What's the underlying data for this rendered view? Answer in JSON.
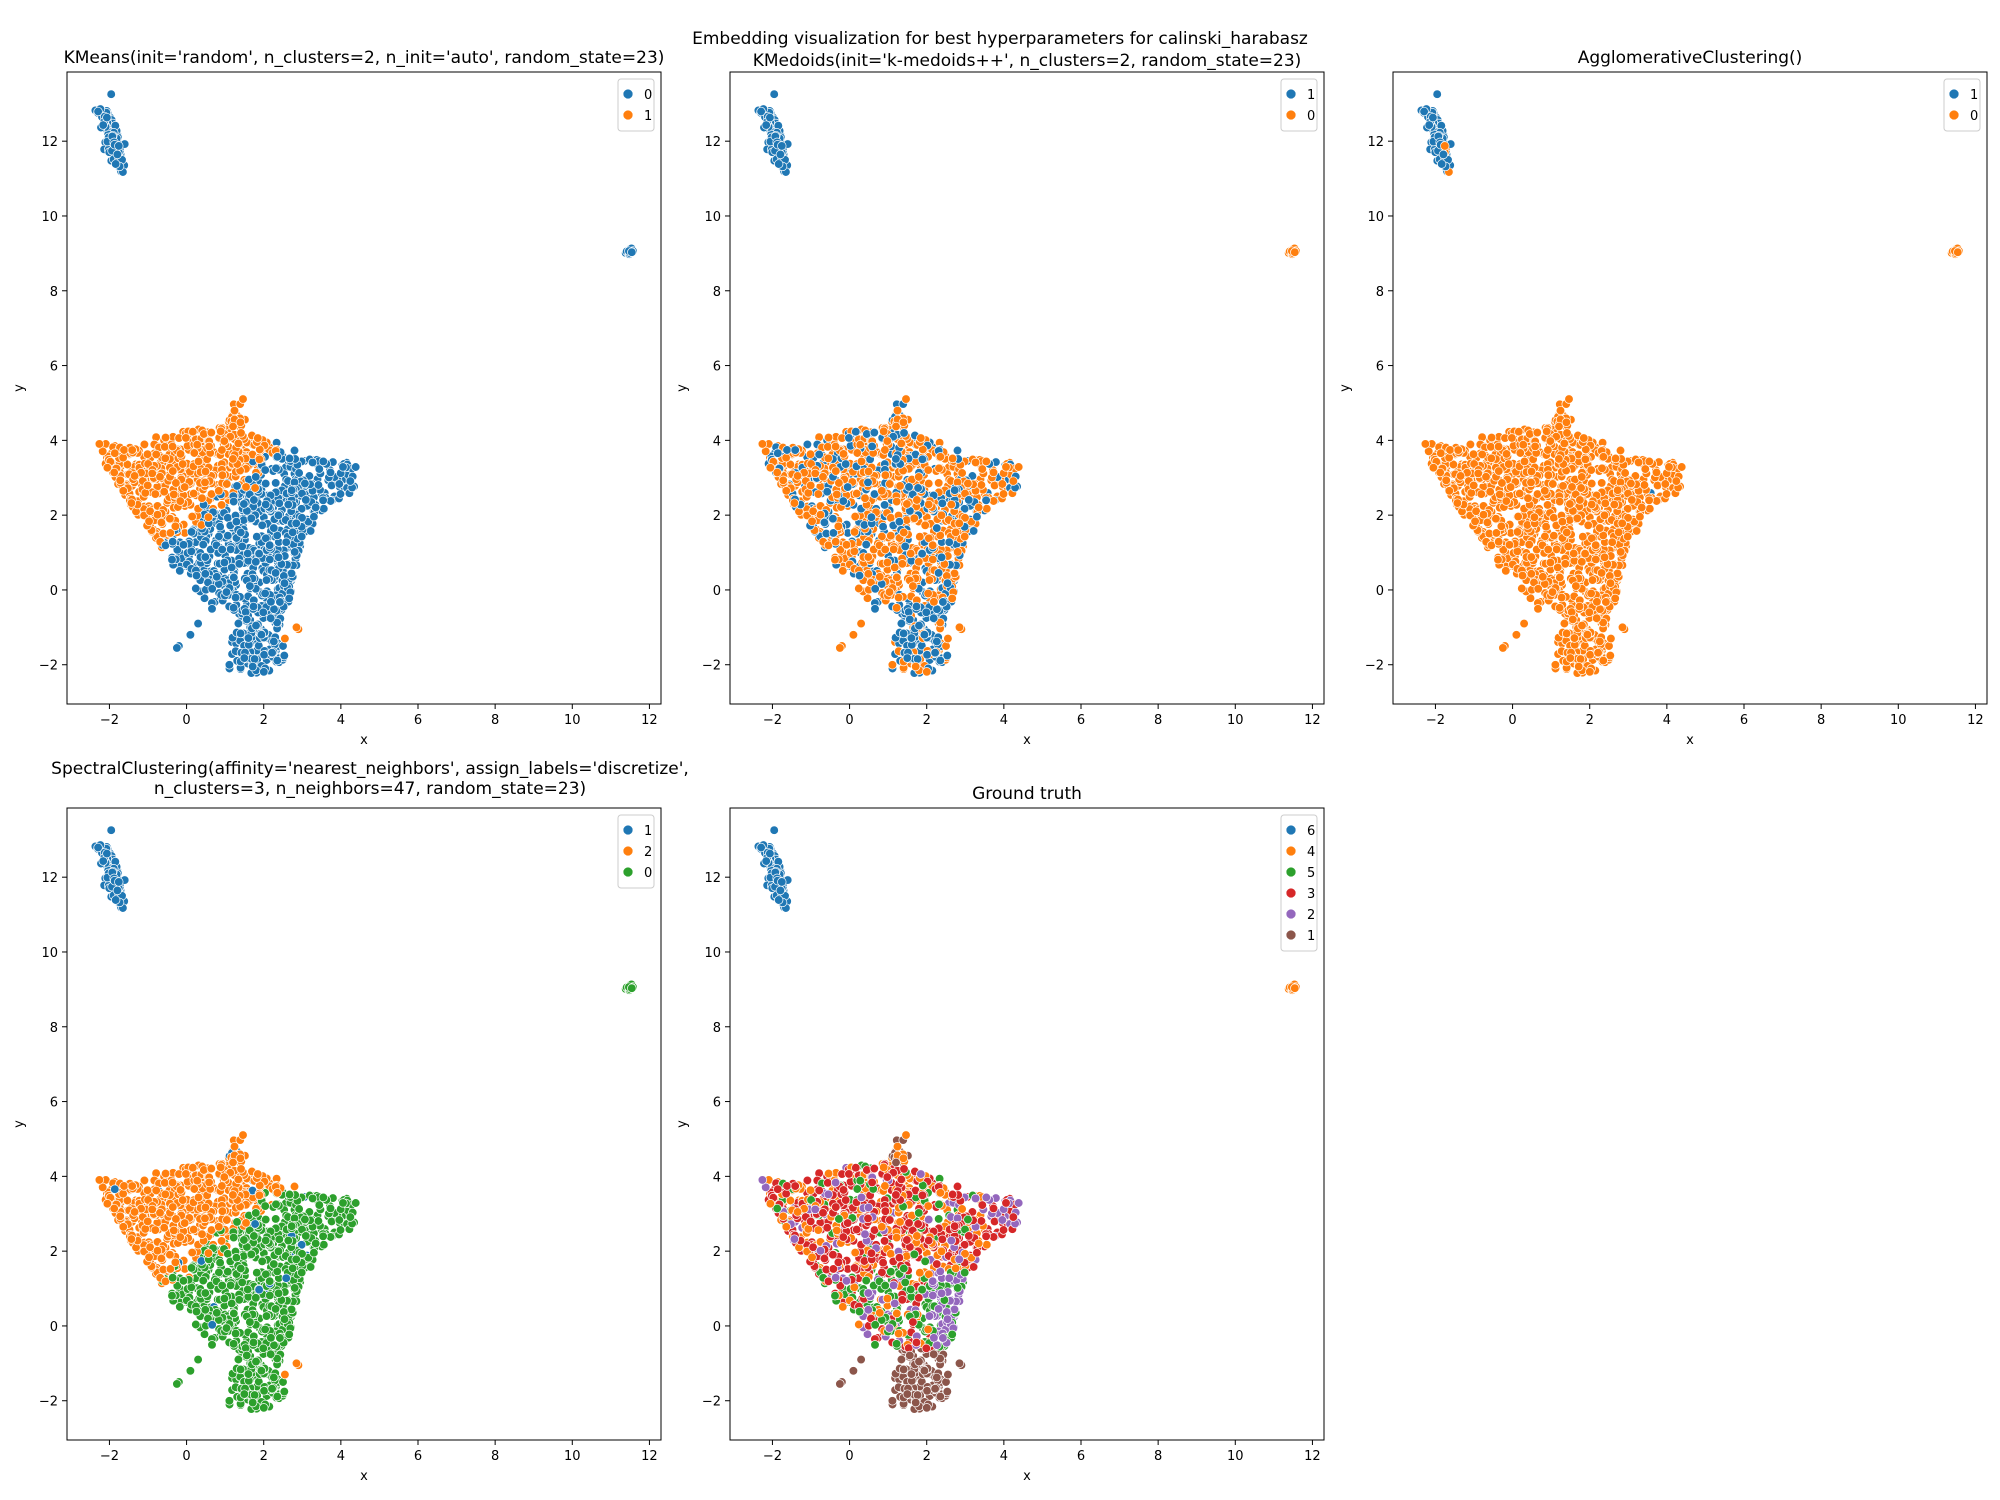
{
  "figure": {
    "suptitle": "Embedding visualization for best hyperparameters for calinski_harabasz"
  },
  "palette": {
    "blue": "#1f77b4",
    "orange": "#ff7f0e",
    "green": "#2ca02c",
    "red": "#d62728",
    "purple": "#9467bd",
    "brown": "#8c564b"
  },
  "chart_data": [
    {
      "type": "scatter",
      "title": "KMeans(init='random', n_clusters=2, n_init='auto', random_state=23)",
      "xlabel": "x",
      "ylabel": "y",
      "xlim": [
        -3.1,
        12.3
      ],
      "ylim": [
        -3.05,
        13.85
      ],
      "xticks": [
        -2,
        0,
        2,
        4,
        6,
        8,
        10,
        12
      ],
      "yticks": [
        -2,
        0,
        2,
        4,
        6,
        8,
        10,
        12
      ],
      "legend_position": "upper right",
      "grid": false,
      "series": [
        {
          "name": "0",
          "color": "blue"
        },
        {
          "name": "1",
          "color": "orange"
        }
      ],
      "coloring": "kmeans"
    },
    {
      "type": "scatter",
      "title": "KMedoids(init='k-medoids++', n_clusters=2, random_state=23)",
      "xlabel": "x",
      "ylabel": "y",
      "xlim": [
        -3.1,
        12.3
      ],
      "ylim": [
        -3.05,
        13.85
      ],
      "xticks": [
        -2,
        0,
        2,
        4,
        6,
        8,
        10,
        12
      ],
      "yticks": [
        -2,
        0,
        2,
        4,
        6,
        8,
        10,
        12
      ],
      "legend_position": "upper right",
      "grid": false,
      "series": [
        {
          "name": "1",
          "color": "blue"
        },
        {
          "name": "0",
          "color": "orange"
        }
      ],
      "coloring": "kmedoids"
    },
    {
      "type": "scatter",
      "title": "AgglomerativeClustering()",
      "xlabel": "x",
      "ylabel": "y",
      "xlim": [
        -3.1,
        12.3
      ],
      "ylim": [
        -3.05,
        13.85
      ],
      "xticks": [
        -2,
        0,
        2,
        4,
        6,
        8,
        10,
        12
      ],
      "yticks": [
        -2,
        0,
        2,
        4,
        6,
        8,
        10,
        12
      ],
      "legend_position": "upper right",
      "grid": false,
      "series": [
        {
          "name": "1",
          "color": "blue"
        },
        {
          "name": "0",
          "color": "orange"
        }
      ],
      "coloring": "agglomerative"
    },
    {
      "type": "scatter",
      "title": "SpectralClustering(affinity='nearest_neighbors', assign_labels='discretize',",
      "title_line2": "n_clusters=3, n_neighbors=47, random_state=23)",
      "xlabel": "x",
      "ylabel": "y",
      "xlim": [
        -3.1,
        12.3
      ],
      "ylim": [
        -3.05,
        13.85
      ],
      "xticks": [
        -2,
        0,
        2,
        4,
        6,
        8,
        10,
        12
      ],
      "yticks": [
        -2,
        0,
        2,
        4,
        6,
        8,
        10,
        12
      ],
      "legend_position": "upper right",
      "grid": false,
      "series": [
        {
          "name": "1",
          "color": "blue"
        },
        {
          "name": "2",
          "color": "orange"
        },
        {
          "name": "0",
          "color": "green"
        }
      ],
      "coloring": "spectral"
    },
    {
      "type": "scatter",
      "title": "Ground truth",
      "xlabel": "x",
      "ylabel": "y",
      "xlim": [
        -3.1,
        12.3
      ],
      "ylim": [
        -3.05,
        13.85
      ],
      "xticks": [
        -2,
        0,
        2,
        4,
        6,
        8,
        10,
        12
      ],
      "yticks": [
        -2,
        0,
        2,
        4,
        6,
        8,
        10,
        12
      ],
      "legend_position": "upper right",
      "grid": false,
      "series": [
        {
          "name": "6",
          "color": "blue"
        },
        {
          "name": "4",
          "color": "orange"
        },
        {
          "name": "5",
          "color": "green"
        },
        {
          "name": "3",
          "color": "red"
        },
        {
          "name": "2",
          "color": "purple"
        },
        {
          "name": "1",
          "color": "brown"
        }
      ],
      "coloring": "truth"
    }
  ]
}
